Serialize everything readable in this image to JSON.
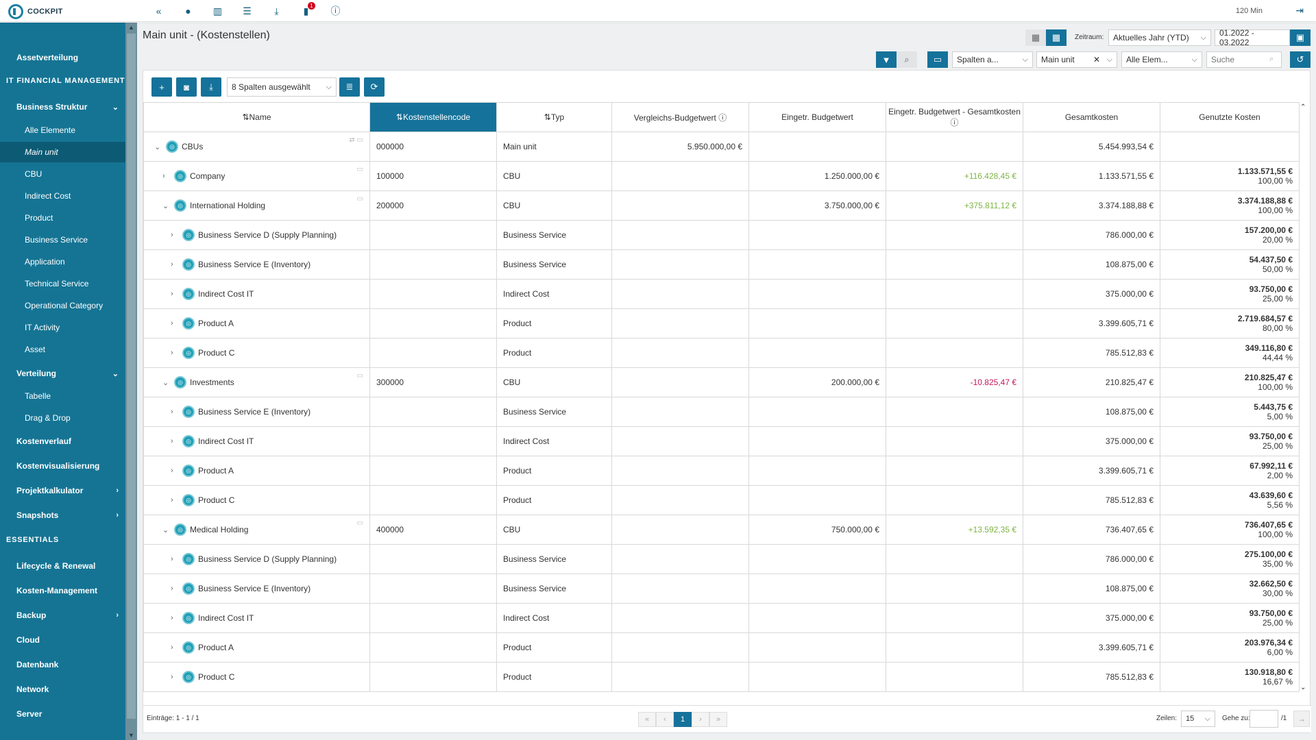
{
  "app": {
    "logo_text": "COCKPIT",
    "session_time": "120 Min",
    "notification_count": "1"
  },
  "sidebar": {
    "items": [
      {
        "label": "Assetverteilung",
        "kind": "bold"
      },
      {
        "label": "IT FINANCIAL MANAGEMENT",
        "kind": "section"
      },
      {
        "label": "Business Struktur",
        "kind": "bold",
        "chevron": "⌄"
      },
      {
        "label": "Alle Elemente",
        "kind": "sub"
      },
      {
        "label": "Main unit",
        "kind": "sub",
        "active": true
      },
      {
        "label": "CBU",
        "kind": "sub"
      },
      {
        "label": "Indirect Cost",
        "kind": "sub"
      },
      {
        "label": "Product",
        "kind": "sub"
      },
      {
        "label": "Business Service",
        "kind": "sub"
      },
      {
        "label": "Application",
        "kind": "sub"
      },
      {
        "label": "Technical Service",
        "kind": "sub"
      },
      {
        "label": "Operational Category",
        "kind": "sub"
      },
      {
        "label": "IT Activity",
        "kind": "sub"
      },
      {
        "label": "Asset",
        "kind": "sub"
      },
      {
        "label": "Verteilung",
        "kind": "bold",
        "chevron": "⌄"
      },
      {
        "label": "Tabelle",
        "kind": "sub"
      },
      {
        "label": "Drag & Drop",
        "kind": "sub"
      },
      {
        "label": "Kostenverlauf",
        "kind": "bold"
      },
      {
        "label": "Kostenvisualisierung",
        "kind": "bold"
      },
      {
        "label": "Projektkalkulator",
        "kind": "bold",
        "chevron": "›"
      },
      {
        "label": "Snapshots",
        "kind": "bold",
        "chevron": "›"
      },
      {
        "label": "ESSENTIALS",
        "kind": "section"
      },
      {
        "label": "Lifecycle & Renewal",
        "kind": "bold"
      },
      {
        "label": "Kosten-Management",
        "kind": "bold"
      },
      {
        "label": "Backup",
        "kind": "bold",
        "chevron": "›"
      },
      {
        "label": "Cloud",
        "kind": "bold"
      },
      {
        "label": "Datenbank",
        "kind": "bold"
      },
      {
        "label": "Network",
        "kind": "bold"
      },
      {
        "label": "Server",
        "kind": "bold"
      }
    ]
  },
  "page": {
    "title": "Main unit - (Kostenstellen)"
  },
  "filters": {
    "zeitraum_label": "Zeitraum:",
    "zeitraum_value": "Aktuelles Jahr (YTD)",
    "date_range": "01.2022 - 03.2022",
    "spalten": "Spalten a...",
    "unit": "Main unit",
    "elements": "Alle Elem...",
    "search_placeholder": "Suche"
  },
  "toolbar": {
    "columns_selected": "8 Spalten ausgewählt"
  },
  "table": {
    "headers": {
      "name": "Name",
      "code": "Kostenstellencode",
      "typ": "Typ",
      "vergleich": "Vergleichs-Budgetwert",
      "eingetr": "Eingetr. Budgetwert",
      "diff": "Eingetr. Budgetwert - Gesamtkosten",
      "gesamt": "Gesamtkosten",
      "genutzt": "Genutzte Kosten"
    },
    "rows": [
      {
        "level": 0,
        "toggle": "⌄",
        "name": "CBUs",
        "code": "000000",
        "typ": "Main unit",
        "vergleich": "5.950.000,00 €",
        "eingetr": "",
        "diff": "",
        "diff_kind": "",
        "gesamt": "5.454.993,54 €",
        "used": "",
        "used_pct": "",
        "tools": "⇄ ▭"
      },
      {
        "level": 1,
        "toggle": "›",
        "name": "Company",
        "code": "100000",
        "typ": "CBU",
        "vergleich": "",
        "eingetr": "1.250.000,00 €",
        "diff": "+116.428,45 €",
        "diff_kind": "pos",
        "gesamt": "1.133.571,55 €",
        "used": "1.133.571,55 €",
        "used_pct": "100,00 %",
        "tools": "▭"
      },
      {
        "level": 1,
        "toggle": "⌄",
        "name": "International Holding",
        "code": "200000",
        "typ": "CBU",
        "vergleich": "",
        "eingetr": "3.750.000,00 €",
        "diff": "+375.811,12 €",
        "diff_kind": "pos",
        "gesamt": "3.374.188,88 €",
        "used": "3.374.188,88 €",
        "used_pct": "100,00 %",
        "tools": "▭"
      },
      {
        "level": 2,
        "toggle": "›",
        "name": "Business Service D (Supply Planning)",
        "code": "",
        "typ": "Business Service",
        "vergleich": "",
        "eingetr": "",
        "diff": "",
        "diff_kind": "",
        "gesamt": "786.000,00 €",
        "used": "157.200,00 €",
        "used_pct": "20,00 %",
        "tools": ""
      },
      {
        "level": 2,
        "toggle": "›",
        "name": "Business Service E (Inventory)",
        "code": "",
        "typ": "Business Service",
        "vergleich": "",
        "eingetr": "",
        "diff": "",
        "diff_kind": "",
        "gesamt": "108.875,00 €",
        "used": "54.437,50 €",
        "used_pct": "50,00 %",
        "tools": ""
      },
      {
        "level": 2,
        "toggle": "›",
        "name": "Indirect Cost IT",
        "code": "",
        "typ": "Indirect Cost",
        "vergleich": "",
        "eingetr": "",
        "diff": "",
        "diff_kind": "",
        "gesamt": "375.000,00 €",
        "used": "93.750,00 €",
        "used_pct": "25,00 %",
        "tools": ""
      },
      {
        "level": 2,
        "toggle": "›",
        "name": "Product A",
        "code": "",
        "typ": "Product",
        "vergleich": "",
        "eingetr": "",
        "diff": "",
        "diff_kind": "",
        "gesamt": "3.399.605,71 €",
        "used": "2.719.684,57 €",
        "used_pct": "80,00 %",
        "tools": ""
      },
      {
        "level": 2,
        "toggle": "›",
        "name": "Product C",
        "code": "",
        "typ": "Product",
        "vergleich": "",
        "eingetr": "",
        "diff": "",
        "diff_kind": "",
        "gesamt": "785.512,83 €",
        "used": "349.116,80 €",
        "used_pct": "44,44 %",
        "tools": ""
      },
      {
        "level": 1,
        "toggle": "⌄",
        "name": "Investments",
        "code": "300000",
        "typ": "CBU",
        "vergleich": "",
        "eingetr": "200.000,00 €",
        "diff": "-10.825,47 €",
        "diff_kind": "neg",
        "gesamt": "210.825,47 €",
        "used": "210.825,47 €",
        "used_pct": "100,00 %",
        "tools": "▭"
      },
      {
        "level": 2,
        "toggle": "›",
        "name": "Business Service E (Inventory)",
        "code": "",
        "typ": "Business Service",
        "vergleich": "",
        "eingetr": "",
        "diff": "",
        "diff_kind": "",
        "gesamt": "108.875,00 €",
        "used": "5.443,75 €",
        "used_pct": "5,00 %",
        "tools": ""
      },
      {
        "level": 2,
        "toggle": "›",
        "name": "Indirect Cost IT",
        "code": "",
        "typ": "Indirect Cost",
        "vergleich": "",
        "eingetr": "",
        "diff": "",
        "diff_kind": "",
        "gesamt": "375.000,00 €",
        "used": "93.750,00 €",
        "used_pct": "25,00 %",
        "tools": ""
      },
      {
        "level": 2,
        "toggle": "›",
        "name": "Product A",
        "code": "",
        "typ": "Product",
        "vergleich": "",
        "eingetr": "",
        "diff": "",
        "diff_kind": "",
        "gesamt": "3.399.605,71 €",
        "used": "67.992,11 €",
        "used_pct": "2,00 %",
        "tools": ""
      },
      {
        "level": 2,
        "toggle": "›",
        "name": "Product C",
        "code": "",
        "typ": "Product",
        "vergleich": "",
        "eingetr": "",
        "diff": "",
        "diff_kind": "",
        "gesamt": "785.512,83 €",
        "used": "43.639,60 €",
        "used_pct": "5,56 %",
        "tools": ""
      },
      {
        "level": 1,
        "toggle": "⌄",
        "name": "Medical Holding",
        "code": "400000",
        "typ": "CBU",
        "vergleich": "",
        "eingetr": "750.000,00 €",
        "diff": "+13.592,35 €",
        "diff_kind": "pos",
        "gesamt": "736.407,65 €",
        "used": "736.407,65 €",
        "used_pct": "100,00 %",
        "tools": "▭"
      },
      {
        "level": 2,
        "toggle": "›",
        "name": "Business Service D (Supply Planning)",
        "code": "",
        "typ": "Business Service",
        "vergleich": "",
        "eingetr": "",
        "diff": "",
        "diff_kind": "",
        "gesamt": "786.000,00 €",
        "used": "275.100,00 €",
        "used_pct": "35,00 %",
        "tools": ""
      },
      {
        "level": 2,
        "toggle": "›",
        "name": "Business Service E (Inventory)",
        "code": "",
        "typ": "Business Service",
        "vergleich": "",
        "eingetr": "",
        "diff": "",
        "diff_kind": "",
        "gesamt": "108.875,00 €",
        "used": "32.662,50 €",
        "used_pct": "30,00 %",
        "tools": ""
      },
      {
        "level": 2,
        "toggle": "›",
        "name": "Indirect Cost IT",
        "code": "",
        "typ": "Indirect Cost",
        "vergleich": "",
        "eingetr": "",
        "diff": "",
        "diff_kind": "",
        "gesamt": "375.000,00 €",
        "used": "93.750,00 €",
        "used_pct": "25,00 %",
        "tools": ""
      },
      {
        "level": 2,
        "toggle": "›",
        "name": "Product A",
        "code": "",
        "typ": "Product",
        "vergleich": "",
        "eingetr": "",
        "diff": "",
        "diff_kind": "",
        "gesamt": "3.399.605,71 €",
        "used": "203.976,34 €",
        "used_pct": "6,00 %",
        "tools": ""
      },
      {
        "level": 2,
        "toggle": "›",
        "name": "Product C",
        "code": "",
        "typ": "Product",
        "vergleich": "",
        "eingetr": "",
        "diff": "",
        "diff_kind": "",
        "gesamt": "785.512,83 €",
        "used": "130.918,80 €",
        "used_pct": "16,67 %",
        "tools": ""
      }
    ]
  },
  "footer": {
    "entries": "Einträge: 1 - 1 / 1",
    "page": "1",
    "zeilen_label": "Zeilen:",
    "zeilen_value": "15",
    "gehe_label": "Gehe zu:",
    "total_pages": "/1"
  },
  "colors": {
    "accent": "#15729a",
    "sidebar": "#157494",
    "positive": "#7cb342",
    "negative": "#c2185b"
  }
}
